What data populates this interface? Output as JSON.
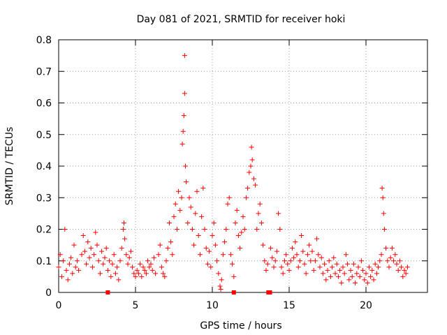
{
  "chart_data": {
    "type": "scatter",
    "title": "Day 081 of 2021, SRMTID for receiver hoki",
    "xlabel": "GPS time / hours",
    "ylabel": "SRMTID / TECUs",
    "xlim": [
      0,
      24
    ],
    "ylim": [
      0,
      0.8
    ],
    "x_ticks": [
      0,
      5,
      10,
      15,
      20
    ],
    "y_ticks": [
      0,
      0.1,
      0.2,
      0.3,
      0.4,
      0.5,
      0.6,
      0.7,
      0.8
    ],
    "x_tick_labels": [
      "0",
      "5",
      "10",
      "15",
      "20"
    ],
    "y_tick_labels": [
      "0",
      "0.1",
      "0.2",
      "0.3",
      "0.4",
      "0.5",
      "0.6",
      "0.7",
      "0.8"
    ],
    "grid": true,
    "marker": "+",
    "series_color": "#ff0000",
    "series": [
      {
        "name": "SRMTID",
        "points": [
          [
            0.0,
            0.08
          ],
          [
            0.1,
            0.12
          ],
          [
            0.2,
            0.05
          ],
          [
            0.3,
            0.1
          ],
          [
            0.4,
            0.2
          ],
          [
            0.5,
            0.07
          ],
          [
            0.6,
            0.04
          ],
          [
            0.7,
            0.09
          ],
          [
            0.8,
            0.11
          ],
          [
            0.9,
            0.06
          ],
          [
            1.0,
            0.15
          ],
          [
            1.1,
            0.08
          ],
          [
            1.2,
            0.1
          ],
          [
            1.3,
            0.07
          ],
          [
            1.5,
            0.12
          ],
          [
            1.6,
            0.18
          ],
          [
            1.7,
            0.13
          ],
          [
            1.8,
            0.09
          ],
          [
            1.9,
            0.16
          ],
          [
            2.0,
            0.11
          ],
          [
            2.1,
            0.14
          ],
          [
            2.2,
            0.08
          ],
          [
            2.3,
            0.12
          ],
          [
            2.4,
            0.19
          ],
          [
            2.5,
            0.15
          ],
          [
            2.6,
            0.1
          ],
          [
            2.7,
            0.06
          ],
          [
            2.8,
            0.13
          ],
          [
            2.9,
            0.09
          ],
          [
            3.0,
            0.11
          ],
          [
            3.1,
            0.14
          ],
          [
            3.2,
            0.07
          ],
          [
            3.3,
            0.1
          ],
          [
            3.4,
            0.05
          ],
          [
            3.5,
            0.09
          ],
          [
            3.6,
            0.12
          ],
          [
            3.7,
            0.06
          ],
          [
            3.8,
            0.08
          ],
          [
            3.9,
            0.04
          ],
          [
            4.0,
            0.1
          ],
          [
            4.1,
            0.14
          ],
          [
            4.2,
            0.2
          ],
          [
            4.25,
            0.22
          ],
          [
            4.3,
            0.17
          ],
          [
            4.4,
            0.12
          ],
          [
            4.5,
            0.09
          ],
          [
            4.6,
            0.11
          ],
          [
            4.7,
            0.13
          ],
          [
            4.8,
            0.08
          ],
          [
            4.9,
            0.06
          ],
          [
            5.0,
            0.05
          ],
          [
            5.1,
            0.07
          ],
          [
            5.2,
            0.06
          ],
          [
            5.3,
            0.09
          ],
          [
            5.4,
            0.05
          ],
          [
            5.5,
            0.08
          ],
          [
            5.6,
            0.07
          ],
          [
            5.7,
            0.06
          ],
          [
            5.8,
            0.1
          ],
          [
            5.9,
            0.08
          ],
          [
            6.0,
            0.09
          ],
          [
            6.1,
            0.07
          ],
          [
            6.2,
            0.11
          ],
          [
            6.3,
            0.06
          ],
          [
            6.5,
            0.12
          ],
          [
            6.6,
            0.15
          ],
          [
            6.7,
            0.08
          ],
          [
            6.8,
            0.06
          ],
          [
            6.9,
            0.05
          ],
          [
            7.0,
            0.1
          ],
          [
            7.1,
            0.14
          ],
          [
            7.2,
            0.22
          ],
          [
            7.3,
            0.16
          ],
          [
            7.4,
            0.12
          ],
          [
            7.5,
            0.24
          ],
          [
            7.6,
            0.28
          ],
          [
            7.7,
            0.2
          ],
          [
            7.8,
            0.32
          ],
          [
            7.9,
            0.26
          ],
          [
            8.0,
            0.3
          ],
          [
            8.05,
            0.47
          ],
          [
            8.1,
            0.51
          ],
          [
            8.15,
            0.56
          ],
          [
            8.2,
            0.63
          ],
          [
            8.2,
            0.75
          ],
          [
            8.25,
            0.4
          ],
          [
            8.3,
            0.35
          ],
          [
            8.4,
            0.22
          ],
          [
            8.5,
            0.3
          ],
          [
            8.6,
            0.27
          ],
          [
            8.7,
            0.2
          ],
          [
            8.8,
            0.15
          ],
          [
            8.9,
            0.25
          ],
          [
            9.0,
            0.32
          ],
          [
            9.1,
            0.18
          ],
          [
            9.2,
            0.12
          ],
          [
            9.3,
            0.24
          ],
          [
            9.4,
            0.33
          ],
          [
            9.5,
            0.2
          ],
          [
            9.6,
            0.14
          ],
          [
            9.7,
            0.09
          ],
          [
            9.8,
            0.13
          ],
          [
            9.9,
            0.08
          ],
          [
            10.0,
            0.18
          ],
          [
            10.1,
            0.22
          ],
          [
            10.2,
            0.15
          ],
          [
            10.3,
            0.1
          ],
          [
            10.4,
            0.06
          ],
          [
            10.5,
            0.02
          ],
          [
            10.55,
            0.01
          ],
          [
            10.6,
            0.04
          ],
          [
            10.7,
            0.12
          ],
          [
            10.8,
            0.16
          ],
          [
            10.9,
            0.2
          ],
          [
            11.0,
            0.28
          ],
          [
            11.1,
            0.3
          ],
          [
            11.2,
            0.12
          ],
          [
            11.3,
            0.09
          ],
          [
            11.4,
            0.05
          ],
          [
            11.5,
            0.22
          ],
          [
            11.6,
            0.26
          ],
          [
            11.7,
            0.18
          ],
          [
            11.8,
            0.14
          ],
          [
            11.9,
            0.19
          ],
          [
            12.0,
            0.24
          ],
          [
            12.1,
            0.2
          ],
          [
            12.2,
            0.3
          ],
          [
            12.3,
            0.33
          ],
          [
            12.4,
            0.38
          ],
          [
            12.5,
            0.4
          ],
          [
            12.55,
            0.46
          ],
          [
            12.6,
            0.42
          ],
          [
            12.7,
            0.36
          ],
          [
            12.8,
            0.34
          ],
          [
            12.9,
            0.2
          ],
          [
            13.0,
            0.25
          ],
          [
            13.1,
            0.28
          ],
          [
            13.2,
            0.22
          ],
          [
            13.3,
            0.15
          ],
          [
            13.4,
            0.1
          ],
          [
            13.5,
            0.07
          ],
          [
            13.6,
            0.09
          ],
          [
            13.8,
            0.14
          ],
          [
            13.9,
            0.11
          ],
          [
            14.0,
            0.08
          ],
          [
            14.1,
            0.1
          ],
          [
            14.2,
            0.13
          ],
          [
            14.3,
            0.25
          ],
          [
            14.4,
            0.2
          ],
          [
            14.5,
            0.08
          ],
          [
            14.6,
            0.06
          ],
          [
            14.7,
            0.1
          ],
          [
            14.8,
            0.12
          ],
          [
            14.9,
            0.09
          ],
          [
            15.0,
            0.07
          ],
          [
            15.1,
            0.1
          ],
          [
            15.2,
            0.14
          ],
          [
            15.3,
            0.11
          ],
          [
            15.4,
            0.16
          ],
          [
            15.5,
            0.12
          ],
          [
            15.6,
            0.08
          ],
          [
            15.7,
            0.1
          ],
          [
            15.8,
            0.18
          ],
          [
            15.9,
            0.13
          ],
          [
            16.0,
            0.09
          ],
          [
            16.1,
            0.06
          ],
          [
            16.2,
            0.12
          ],
          [
            16.3,
            0.15
          ],
          [
            16.4,
            0.1
          ],
          [
            16.5,
            0.13
          ],
          [
            16.6,
            0.07
          ],
          [
            16.7,
            0.1
          ],
          [
            16.8,
            0.17
          ],
          [
            16.9,
            0.12
          ],
          [
            17.0,
            0.08
          ],
          [
            17.1,
            0.11
          ],
          [
            17.2,
            0.06
          ],
          [
            17.3,
            0.09
          ],
          [
            17.4,
            0.04
          ],
          [
            17.5,
            0.07
          ],
          [
            17.6,
            0.1
          ],
          [
            17.7,
            0.05
          ],
          [
            17.8,
            0.08
          ],
          [
            17.9,
            0.11
          ],
          [
            18.0,
            0.06
          ],
          [
            18.1,
            0.09
          ],
          [
            18.2,
            0.05
          ],
          [
            18.3,
            0.07
          ],
          [
            18.4,
            0.03
          ],
          [
            18.5,
            0.08
          ],
          [
            18.6,
            0.06
          ],
          [
            18.7,
            0.12
          ],
          [
            18.8,
            0.09
          ],
          [
            18.9,
            0.04
          ],
          [
            19.0,
            0.07
          ],
          [
            19.1,
            0.05
          ],
          [
            19.2,
            0.09
          ],
          [
            19.3,
            0.03
          ],
          [
            19.4,
            0.06
          ],
          [
            19.5,
            0.08
          ],
          [
            19.6,
            0.05
          ],
          [
            19.7,
            0.1
          ],
          [
            19.8,
            0.07
          ],
          [
            19.9,
            0.04
          ],
          [
            20.0,
            0.06
          ],
          [
            20.1,
            0.03
          ],
          [
            20.2,
            0.08
          ],
          [
            20.3,
            0.05
          ],
          [
            20.4,
            0.07
          ],
          [
            20.5,
            0.04
          ],
          [
            20.6,
            0.09
          ],
          [
            20.7,
            0.06
          ],
          [
            20.8,
            0.08
          ],
          [
            20.9,
            0.1
          ],
          [
            21.0,
            0.12
          ],
          [
            21.05,
            0.33
          ],
          [
            21.1,
            0.3
          ],
          [
            21.15,
            0.25
          ],
          [
            21.2,
            0.2
          ],
          [
            21.3,
            0.14
          ],
          [
            21.4,
            0.1
          ],
          [
            21.5,
            0.08
          ],
          [
            21.6,
            0.11
          ],
          [
            21.7,
            0.14
          ],
          [
            21.8,
            0.1
          ],
          [
            21.9,
            0.12
          ],
          [
            22.0,
            0.09
          ],
          [
            22.1,
            0.07
          ],
          [
            22.2,
            0.1
          ],
          [
            22.3,
            0.08
          ],
          [
            22.4,
            0.05
          ],
          [
            22.5,
            0.07
          ],
          [
            22.6,
            0.06
          ],
          [
            22.7,
            0.08
          ]
        ]
      }
    ],
    "axis_markers_x": [
      3.2,
      11.4,
      13.65,
      13.75
    ]
  }
}
